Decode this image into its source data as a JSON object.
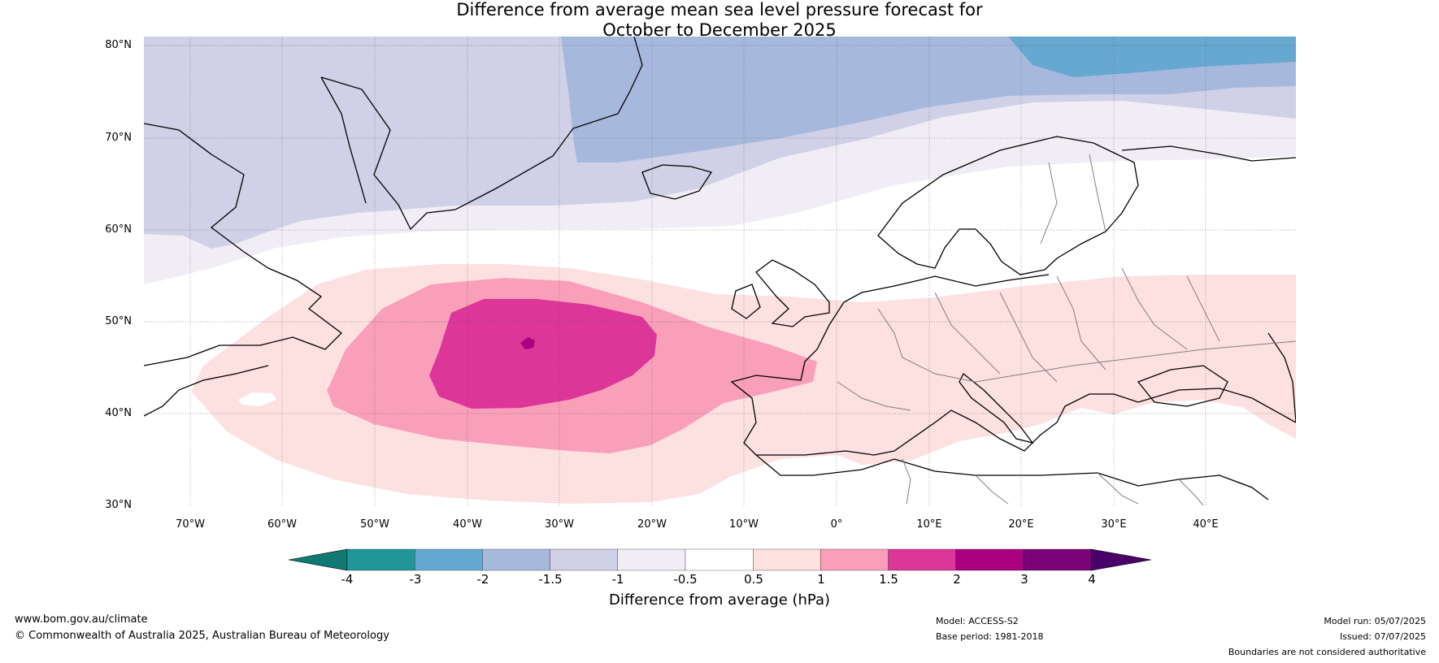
{
  "title_line1": "Difference from average mean sea level pressure forecast for",
  "title_line2": "October to December 2025",
  "lat_labels": [
    "80°N",
    "70°N",
    "60°N",
    "50°N",
    "40°N",
    "30°N"
  ],
  "lon_labels": [
    "70°W",
    "60°W",
    "50°W",
    "40°W",
    "30°W",
    "20°W",
    "10°W",
    "0°",
    "10°E",
    "20°E",
    "30°E",
    "40°E"
  ],
  "colorbar": {
    "title": "Difference from average (hPa)",
    "tick_labels": [
      "-4",
      "-3",
      "-2",
      "-1.5",
      "-1",
      "-0.5",
      "0.5",
      "1",
      "1.5",
      "2",
      "3",
      "4"
    ],
    "colors": [
      "#0f7a71",
      "#1f9799",
      "#66a8d0",
      "#a6b9dc",
      "#d0d0e6",
      "#f1edf5",
      "#ffffff",
      "#fde0e0",
      "#f99fba",
      "#dc3698",
      "#ab007f",
      "#7a0177",
      "#4a006a"
    ]
  },
  "map_colors": {
    "ocean": "#ffffff",
    "coast": "#000000",
    "border": "#808080",
    "grid": "#555555"
  },
  "footer": {
    "website": "www.bom.gov.au/climate",
    "copyright": "© Commonwealth of Australia 2025, Australian Bureau of Meteorology",
    "model": "Model: ACCESS-S2",
    "base_period": "Base period: 1981-2018",
    "model_run": "Model run: 05/07/2025",
    "issued": "Issued: 07/07/2025",
    "disclaimer": "Boundaries are not considered authoritative"
  }
}
